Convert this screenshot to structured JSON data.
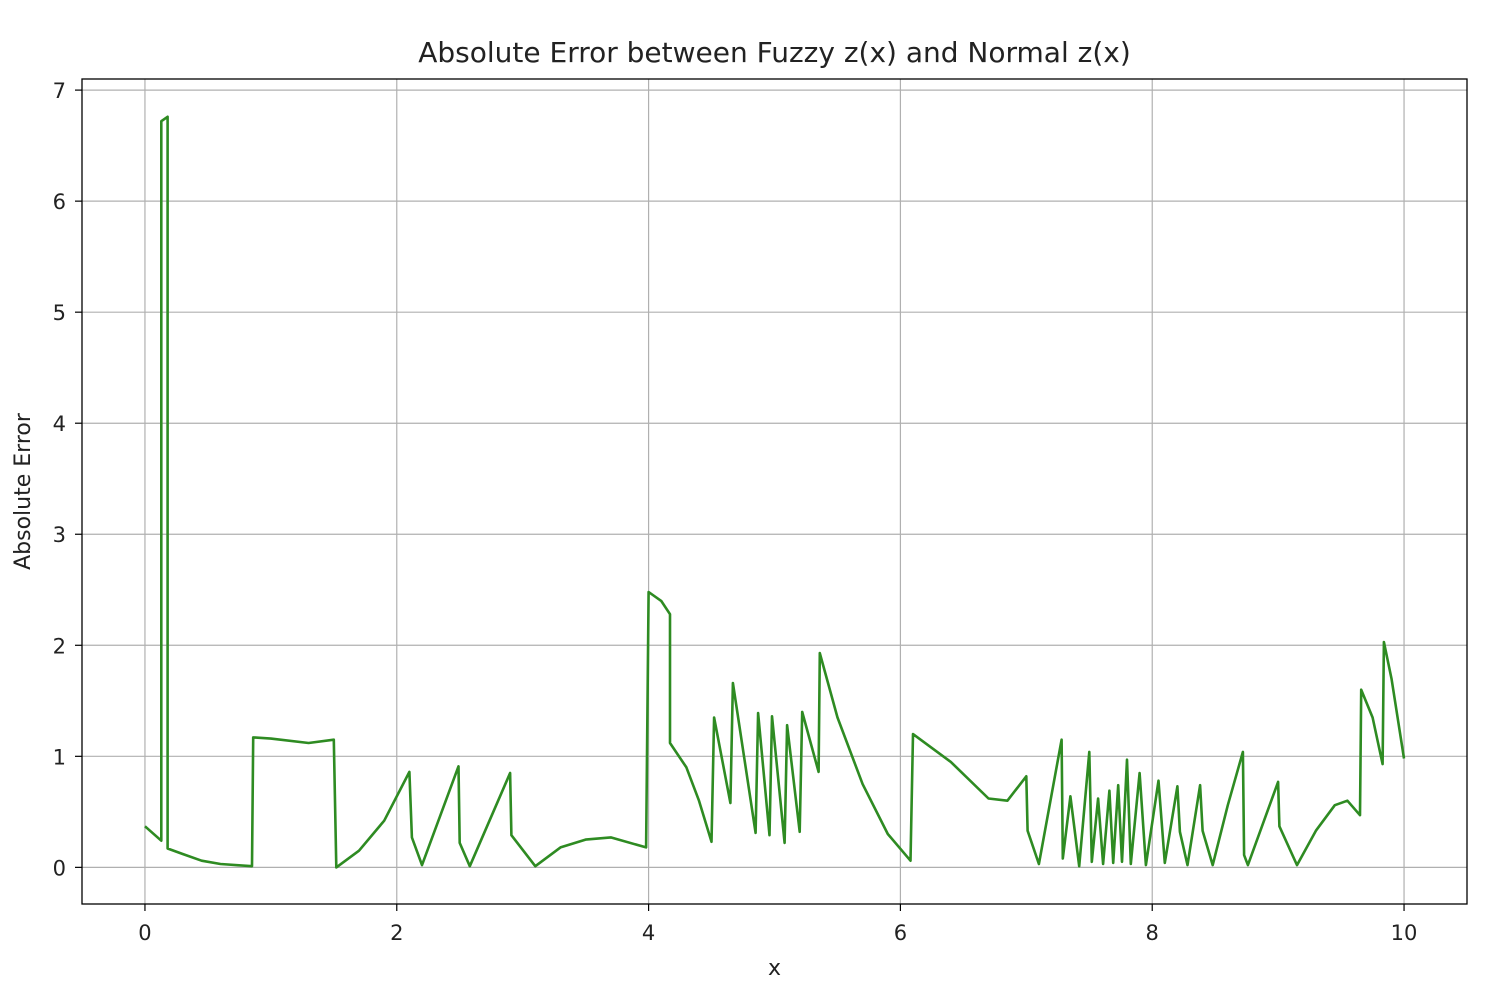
{
  "chart_data": {
    "type": "line",
    "title": "Absolute Error between Fuzzy z(x) and Normal z(x)",
    "xlabel": "x",
    "ylabel": "Absolute Error",
    "xlim": [
      -0.5,
      10.5
    ],
    "ylim": [
      -0.33,
      7.1
    ],
    "xticks": [
      0,
      2,
      4,
      6,
      8,
      10
    ],
    "yticks": [
      0,
      1,
      2,
      3,
      4,
      5,
      6,
      7
    ],
    "grid": true,
    "series": [
      {
        "color": "#2e8b22",
        "points": [
          [
            0,
            0.37
          ],
          [
            0.13,
            0.24
          ],
          [
            0.13,
            6.72
          ],
          [
            0.18,
            6.76
          ],
          [
            0.18,
            0.17
          ],
          [
            0.3,
            0.12
          ],
          [
            0.45,
            0.06
          ],
          [
            0.6,
            0.03
          ],
          [
            0.85,
            0.01
          ],
          [
            0.86,
            1.17
          ],
          [
            1.0,
            1.16
          ],
          [
            1.3,
            1.12
          ],
          [
            1.5,
            1.15
          ],
          [
            1.52,
            0.0
          ],
          [
            1.7,
            0.15
          ],
          [
            1.9,
            0.42
          ],
          [
            2.1,
            0.86
          ],
          [
            2.12,
            0.27
          ],
          [
            2.2,
            0.02
          ],
          [
            2.49,
            0.91
          ],
          [
            2.5,
            0.22
          ],
          [
            2.58,
            0.01
          ],
          [
            2.9,
            0.85
          ],
          [
            2.91,
            0.29
          ],
          [
            3.1,
            0.01
          ],
          [
            3.3,
            0.18
          ],
          [
            3.5,
            0.25
          ],
          [
            3.7,
            0.27
          ],
          [
            3.98,
            0.18
          ],
          [
            4.0,
            2.48
          ],
          [
            4.1,
            2.4
          ],
          [
            4.17,
            2.28
          ],
          [
            4.17,
            1.12
          ],
          [
            4.3,
            0.9
          ],
          [
            4.4,
            0.6
          ],
          [
            4.5,
            0.23
          ],
          [
            4.52,
            1.35
          ],
          [
            4.65,
            0.58
          ],
          [
            4.67,
            1.66
          ],
          [
            4.85,
            0.31
          ],
          [
            4.87,
            1.39
          ],
          [
            4.96,
            0.29
          ],
          [
            4.98,
            1.36
          ],
          [
            5.08,
            0.22
          ],
          [
            5.1,
            1.28
          ],
          [
            5.2,
            0.32
          ],
          [
            5.22,
            1.4
          ],
          [
            5.35,
            0.86
          ],
          [
            5.36,
            1.93
          ],
          [
            5.5,
            1.35
          ],
          [
            5.7,
            0.75
          ],
          [
            5.9,
            0.3
          ],
          [
            6.08,
            0.06
          ],
          [
            6.1,
            1.2
          ],
          [
            6.4,
            0.95
          ],
          [
            6.7,
            0.62
          ],
          [
            6.85,
            0.6
          ],
          [
            7.0,
            0.82
          ],
          [
            7.01,
            0.33
          ],
          [
            7.1,
            0.03
          ],
          [
            7.28,
            1.15
          ],
          [
            7.29,
            0.08
          ],
          [
            7.35,
            0.64
          ],
          [
            7.42,
            0.01
          ],
          [
            7.5,
            1.04
          ],
          [
            7.52,
            0.05
          ],
          [
            7.57,
            0.62
          ],
          [
            7.61,
            0.03
          ],
          [
            7.66,
            0.69
          ],
          [
            7.69,
            0.04
          ],
          [
            7.73,
            0.74
          ],
          [
            7.76,
            0.05
          ],
          [
            7.8,
            0.97
          ],
          [
            7.83,
            0.03
          ],
          [
            7.9,
            0.85
          ],
          [
            7.95,
            0.02
          ],
          [
            8.05,
            0.78
          ],
          [
            8.1,
            0.04
          ],
          [
            8.2,
            0.73
          ],
          [
            8.22,
            0.32
          ],
          [
            8.28,
            0.02
          ],
          [
            8.38,
            0.74
          ],
          [
            8.4,
            0.33
          ],
          [
            8.48,
            0.02
          ],
          [
            8.6,
            0.56
          ],
          [
            8.72,
            1.04
          ],
          [
            8.73,
            0.11
          ],
          [
            8.76,
            0.02
          ],
          [
            9.0,
            0.77
          ],
          [
            9.01,
            0.37
          ],
          [
            9.15,
            0.02
          ],
          [
            9.3,
            0.33
          ],
          [
            9.45,
            0.56
          ],
          [
            9.55,
            0.6
          ],
          [
            9.65,
            0.47
          ],
          [
            9.66,
            1.6
          ],
          [
            9.75,
            1.35
          ],
          [
            9.83,
            0.93
          ],
          [
            9.84,
            2.03
          ],
          [
            9.9,
            1.7
          ],
          [
            10.0,
            0.98
          ]
        ]
      }
    ]
  }
}
